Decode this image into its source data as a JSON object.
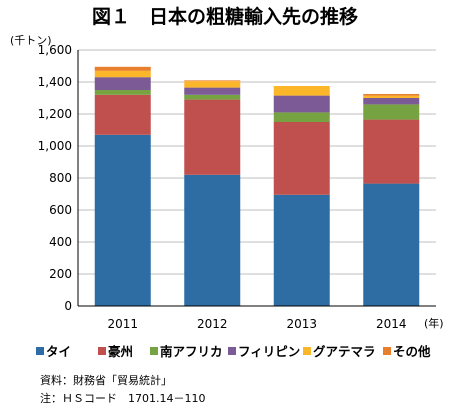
{
  "title": "図１　日本の粗糖輸入先の推移",
  "chart_data": {
    "type": "bar",
    "stacked": true,
    "y_unit": "(千トン)",
    "x_unit": "(年)",
    "categories": [
      "2011",
      "2012",
      "2013",
      "2014"
    ],
    "ylim": [
      0,
      1600
    ],
    "yticks": [
      "0",
      "200",
      "400",
      "600",
      "800",
      "1,000",
      "1,200",
      "1,400",
      "1,600"
    ],
    "series": [
      {
        "name": "タイ",
        "color": "#2e6da4",
        "values": [
          1070,
          820,
          695,
          765
        ]
      },
      {
        "name": "豪州",
        "color": "#c0504d",
        "values": [
          250,
          470,
          455,
          400
        ]
      },
      {
        "name": "南アフリカ",
        "color": "#77a241",
        "values": [
          30,
          30,
          60,
          95
        ]
      },
      {
        "name": "フィリピン",
        "color": "#7b5a96",
        "values": [
          80,
          45,
          105,
          40
        ]
      },
      {
        "name": "グアテマラ",
        "color": "#fbb62a",
        "values": [
          40,
          40,
          60,
          15
        ]
      },
      {
        "name": "その他",
        "color": "#e87f2f",
        "values": [
          25,
          5,
          0,
          10
        ]
      }
    ],
    "grid": true,
    "legend_position": "bottom"
  },
  "notes": {
    "source": "資料：財務省「貿易統計」",
    "hs": "注：ＨＳコード　1701.14－110"
  }
}
